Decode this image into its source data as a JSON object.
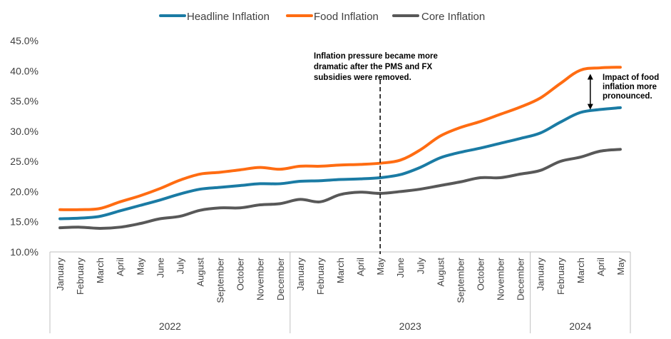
{
  "chart_data": {
    "type": "line",
    "title": "",
    "xlabel": "",
    "ylabel": "",
    "ylim": [
      0.1,
      0.45
    ],
    "y_ticks": [
      0.1,
      0.15,
      0.2,
      0.25,
      0.3,
      0.35,
      0.4,
      0.45
    ],
    "y_tick_labels": [
      "10.0%",
      "15.0%",
      "20.0%",
      "25.0%",
      "30.0%",
      "35.0%",
      "40.0%",
      "45.0%"
    ],
    "grid": false,
    "legend": "top-center",
    "categories": [
      "January",
      "February",
      "March",
      "April",
      "May",
      "June",
      "July",
      "August",
      "September",
      "October",
      "November",
      "December",
      "January",
      "February",
      "March",
      "April",
      "May",
      "June",
      "July",
      "August",
      "September",
      "October",
      "November",
      "December",
      "January",
      "February",
      "March",
      "April",
      "May"
    ],
    "year_groups": [
      {
        "label": "2022",
        "count": 12
      },
      {
        "label": "2023",
        "count": 12
      },
      {
        "label": "2024",
        "count": 5
      }
    ],
    "series": [
      {
        "name": "Headline Inflation",
        "color": "#1a7ba4",
        "values": [
          0.155,
          0.156,
          0.159,
          0.168,
          0.177,
          0.186,
          0.196,
          0.204,
          0.207,
          0.21,
          0.213,
          0.213,
          0.217,
          0.218,
          0.22,
          0.221,
          0.223,
          0.228,
          0.24,
          0.256,
          0.265,
          0.272,
          0.28,
          0.288,
          0.297,
          0.315,
          0.331,
          0.336,
          0.339
        ]
      },
      {
        "name": "Food Inflation",
        "color": "#ff6c12",
        "values": [
          0.17,
          0.17,
          0.172,
          0.183,
          0.193,
          0.205,
          0.219,
          0.229,
          0.232,
          0.236,
          0.24,
          0.237,
          0.242,
          0.242,
          0.244,
          0.245,
          0.247,
          0.252,
          0.269,
          0.292,
          0.306,
          0.316,
          0.328,
          0.34,
          0.355,
          0.379,
          0.401,
          0.405,
          0.406
        ]
      },
      {
        "name": "Core Inflation",
        "color": "#585858",
        "values": [
          0.14,
          0.141,
          0.139,
          0.141,
          0.147,
          0.155,
          0.159,
          0.169,
          0.173,
          0.173,
          0.178,
          0.18,
          0.187,
          0.183,
          0.195,
          0.199,
          0.197,
          0.2,
          0.204,
          0.21,
          0.216,
          0.223,
          0.223,
          0.229,
          0.235,
          0.25,
          0.257,
          0.267,
          0.27
        ]
      }
    ],
    "annotations": [
      {
        "text_lines": [
          "Inflation pressure became more",
          "dramatic after the PMS and FX",
          "subsidies were removed."
        ],
        "anchor_category_index": 16,
        "style": "dashed-vertical-line"
      },
      {
        "text_lines": [
          "Impact of food",
          "inflation more",
          "pronounced."
        ],
        "anchor_category_index": 26,
        "style": "double-arrow",
        "from_series": "Food Inflation",
        "to_series": "Headline Inflation"
      }
    ]
  }
}
